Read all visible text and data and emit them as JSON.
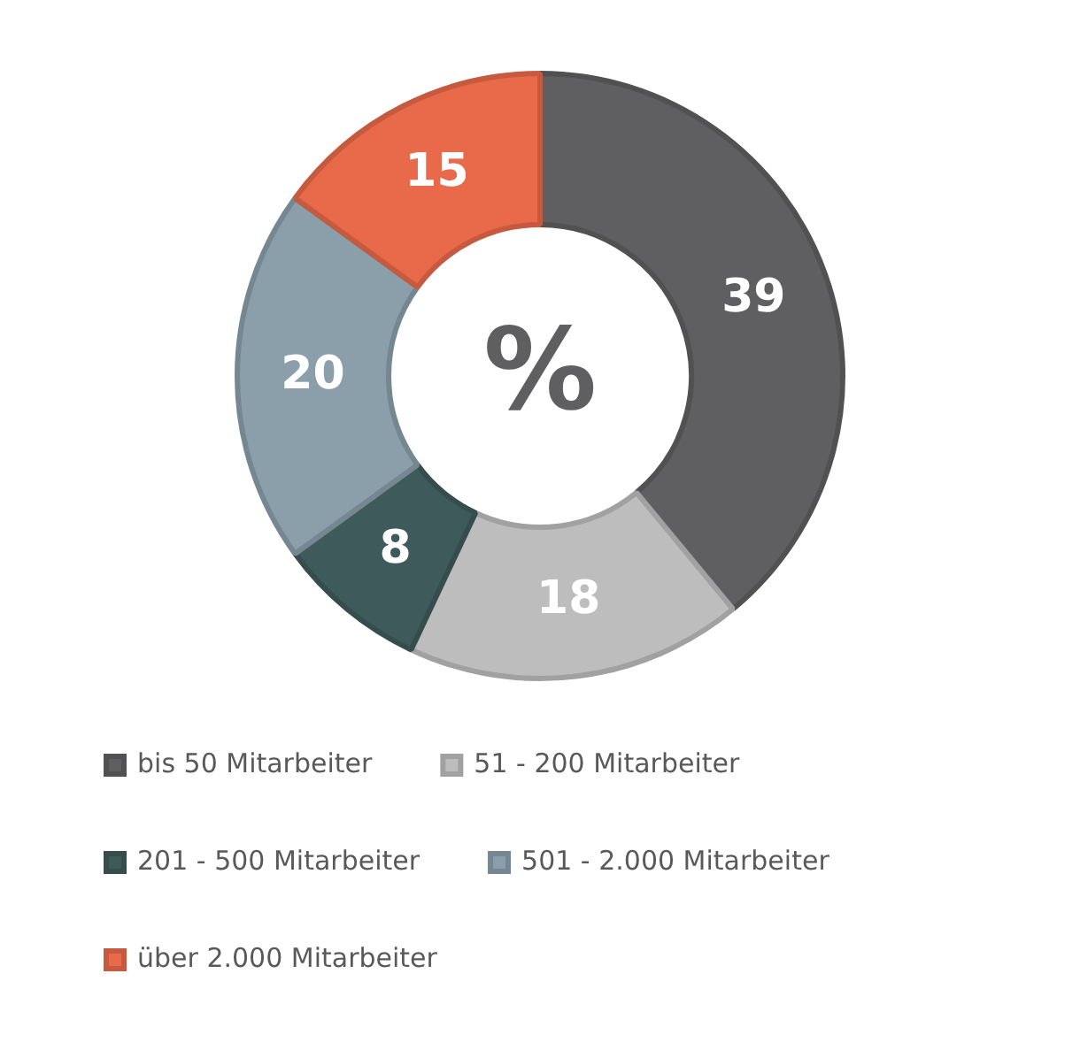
{
  "chart_data": {
    "type": "donut",
    "categories": [
      "bis 50 Mitarbeiter",
      "51 - 200 Mitarbeiter",
      "201 - 500 Mitarbeiter",
      "501 - 2.000 Mitarbeiter",
      "über 2.000 Mitarbeiter"
    ],
    "values": [
      39,
      18,
      8,
      20,
      15
    ],
    "colors": [
      "#5f5f61",
      "#bdbdbd",
      "#3f5a5b",
      "#8a9fa9",
      "#e86a4a"
    ],
    "annotations": [
      "%"
    ],
    "data_labels": true,
    "legend": "bottom"
  }
}
